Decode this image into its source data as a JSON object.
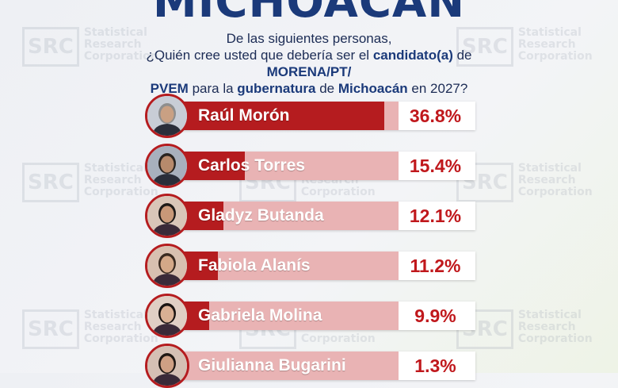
{
  "header": {
    "title": "MICHOACÁN",
    "question_parts": [
      {
        "text": "De las siguientes personas,",
        "bold": false,
        "br": true
      },
      {
        "text": "¿Quién cree usted que debería ser el ",
        "bold": false
      },
      {
        "text": "candidato(a)",
        "bold": true
      },
      {
        "text": " de ",
        "bold": false
      },
      {
        "text": "MORENA/PT/",
        "bold": true,
        "br": true
      },
      {
        "text": "PVEM",
        "bold": true
      },
      {
        "text": " para la ",
        "bold": false
      },
      {
        "text": "gubernatura",
        "bold": true
      },
      {
        "text": " de ",
        "bold": false
      },
      {
        "text": "Michoacán",
        "bold": true
      },
      {
        "text": " en 2027?",
        "bold": false
      }
    ]
  },
  "watermark": {
    "badge": "SRC",
    "lines": [
      "Statistical",
      "Research",
      "Corporation"
    ]
  },
  "colors": {
    "title": "#1b3a7a",
    "bar_name": "#b51c1f",
    "bar_value": "#e9b3b4",
    "percent_text": "#c0181c"
  },
  "chart_data": {
    "type": "bar",
    "orientation": "horizontal",
    "categories": [
      "Raúl Morón",
      "Carlos Torres",
      "Gladyz Butanda",
      "Fabiola Alanís",
      "Gabriela Molina",
      "Giulianna Bugarini"
    ],
    "values": [
      36.8,
      15.4,
      12.1,
      11.2,
      9.9,
      1.3
    ],
    "labels": [
      "36.8%",
      "15.4%",
      "12.1%",
      "11.2%",
      "9.9%",
      "1.3%"
    ],
    "unit": "%",
    "xlim": [
      0,
      100
    ],
    "title": "",
    "xlabel": "",
    "ylabel": ""
  }
}
